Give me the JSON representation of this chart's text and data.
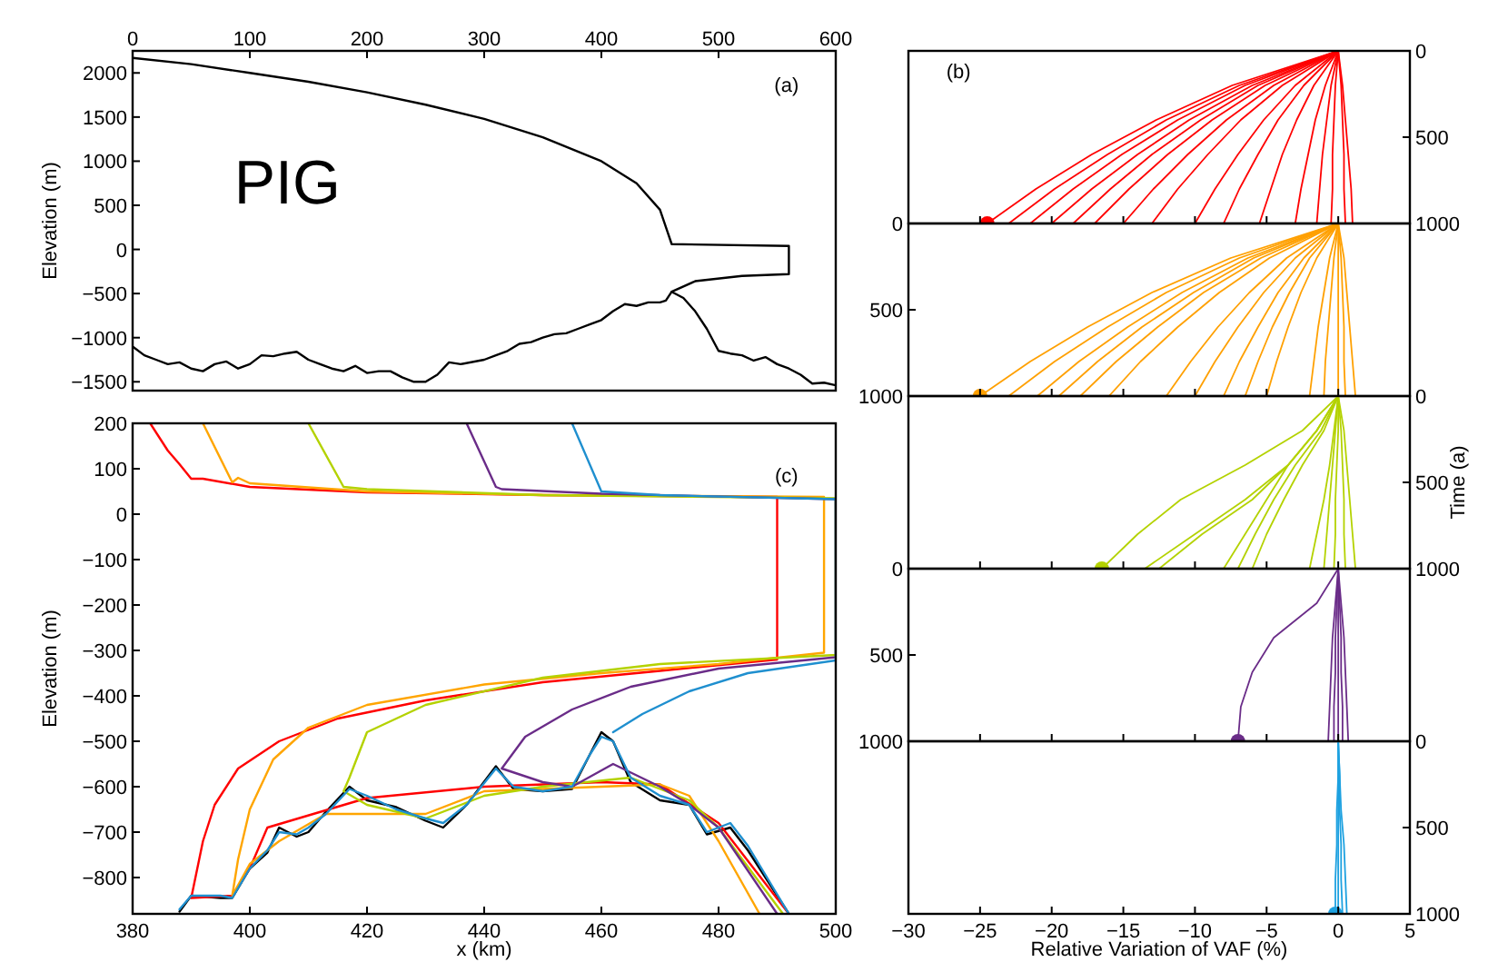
{
  "chart_data": [
    {
      "type": "line",
      "xlim": [
        0,
        600
      ],
      "xticks": [
        0,
        100,
        200,
        300,
        400,
        500,
        600
      ],
      "ylim": [
        -1600,
        2250
      ],
      "yticks": [
        -1500,
        -1000,
        -500,
        0,
        500,
        1000,
        1500,
        2000
      ],
      "ylabel": "Elevation (m)",
      "annotations": [
        "(a)",
        "PIG"
      ],
      "series": [
        {
          "color": "#000000",
          "x": [
            0,
            50,
            100,
            150,
            200,
            250,
            300,
            350,
            400,
            430,
            450,
            460,
            560,
            560,
            520,
            480,
            460
          ],
          "values": [
            2170,
            2100,
            2000,
            1900,
            1780,
            1640,
            1480,
            1270,
            1000,
            750,
            450,
            60,
            40,
            -280,
            -300,
            -360,
            -480
          ]
        },
        {
          "color": "#000000",
          "x": [
            0,
            10,
            20,
            30,
            40,
            50,
            60,
            70,
            80,
            90,
            100,
            110,
            120,
            130,
            140,
            150,
            160,
            170,
            180,
            190,
            200,
            210,
            220,
            230,
            240,
            250,
            260,
            270,
            280,
            300,
            310,
            320,
            330,
            340,
            350,
            360,
            370,
            380,
            390,
            400,
            410,
            420,
            430,
            440,
            450,
            455,
            460,
            470,
            480,
            490,
            500,
            510,
            520,
            530,
            540,
            550,
            560,
            570,
            580,
            590,
            600
          ],
          "values": [
            -1100,
            -1200,
            -1250,
            -1300,
            -1280,
            -1350,
            -1380,
            -1300,
            -1270,
            -1350,
            -1300,
            -1200,
            -1210,
            -1180,
            -1160,
            -1250,
            -1300,
            -1350,
            -1380,
            -1320,
            -1400,
            -1380,
            -1380,
            -1450,
            -1500,
            -1500,
            -1420,
            -1280,
            -1300,
            -1250,
            -1200,
            -1150,
            -1070,
            -1050,
            -1000,
            -960,
            -950,
            -900,
            -850,
            -800,
            -700,
            -620,
            -640,
            -600,
            -600,
            -580,
            -480,
            -550,
            -700,
            -900,
            -1150,
            -1180,
            -1200,
            -1260,
            -1220,
            -1300,
            -1350,
            -1420,
            -1520,
            -1510,
            -1540
          ]
        }
      ]
    },
    {
      "type": "line",
      "xlim": [
        380,
        500
      ],
      "xticks": [
        380,
        400,
        420,
        440,
        460,
        480,
        500
      ],
      "ylim": [
        -880,
        200
      ],
      "yticks": [
        -800,
        -700,
        -600,
        -500,
        -400,
        -300,
        -200,
        -100,
        0,
        100,
        200
      ],
      "xlabel": "x (km)",
      "ylabel": "Elevation (m)",
      "annotations": [
        "(c)"
      ],
      "series": [
        {
          "color": "#000000",
          "x": [
            388,
            390,
            395,
            397,
            400,
            403,
            405,
            408,
            410,
            413,
            417,
            420,
            425,
            430,
            433,
            437,
            442,
            445,
            450,
            455,
            458,
            460,
            462,
            465,
            470,
            475,
            478,
            482,
            485,
            492
          ],
          "values": [
            -875,
            -840,
            -845,
            -845,
            -780,
            -745,
            -690,
            -710,
            -700,
            -655,
            -600,
            -630,
            -645,
            -675,
            -690,
            -640,
            -555,
            -605,
            -610,
            -605,
            -530,
            -480,
            -500,
            -590,
            -630,
            -640,
            -705,
            -690,
            -740,
            -880
          ]
        },
        {
          "color": "#ff0000",
          "x": [
            383,
            386,
            388,
            390,
            392,
            400,
            420,
            450,
            490,
            490,
            470,
            450,
            430,
            415,
            405,
            398,
            394,
            392,
            390,
            397,
            400,
            403,
            420,
            440,
            460,
            470,
            480,
            492
          ],
          "values": [
            200,
            140,
            110,
            78,
            78,
            60,
            48,
            42,
            38,
            -320,
            -345,
            -370,
            -410,
            -450,
            -500,
            -560,
            -640,
            -720,
            -845,
            -840,
            -780,
            -690,
            -625,
            -600,
            -590,
            -595,
            -680,
            -880
          ]
        },
        {
          "color": "#ffa500",
          "x": [
            392,
            397,
            398,
            400,
            420,
            450,
            498,
            498,
            480,
            460,
            440,
            420,
            410,
            404,
            400,
            398,
            397,
            400,
            405,
            413,
            430,
            440,
            470,
            475,
            480,
            487
          ],
          "values": [
            200,
            70,
            80,
            68,
            50,
            42,
            38,
            -305,
            -330,
            -350,
            -375,
            -420,
            -470,
            -540,
            -650,
            -760,
            -840,
            -770,
            -720,
            -660,
            -660,
            -610,
            -595,
            -620,
            -720,
            -880
          ]
        },
        {
          "color": "#b4d200",
          "x": [
            410,
            416,
            420,
            450,
            500,
            500,
            470,
            450,
            430,
            420,
            417,
            416,
            420,
            430,
            440,
            450,
            465,
            475,
            480,
            491
          ],
          "values": [
            200,
            60,
            55,
            42,
            35,
            -310,
            -330,
            -360,
            -420,
            -480,
            -580,
            -610,
            -640,
            -670,
            -620,
            -600,
            -580,
            -630,
            -690,
            -880
          ]
        },
        {
          "color": "#6a2c88",
          "x": [
            437,
            442,
            443,
            460,
            500,
            500,
            480,
            465,
            455,
            447,
            443,
            450,
            455,
            462,
            470,
            475,
            480,
            490
          ],
          "values": [
            200,
            60,
            55,
            45,
            33,
            -315,
            -340,
            -380,
            -430,
            -490,
            -560,
            -590,
            -600,
            -550,
            -600,
            -640,
            -690,
            -880
          ]
        },
        {
          "color": "#1f8fcf",
          "x": [
            455,
            460,
            470,
            500,
            500,
            485,
            475,
            467,
            462
          ],
          "values": [
            200,
            50,
            42,
            33,
            -322,
            -350,
            -390,
            -440,
            -480
          ]
        },
        {
          "color": "#1f8fcf",
          "x": [
            388,
            390,
            395,
            397,
            400,
            403,
            405,
            408,
            410,
            413,
            417,
            420,
            425,
            430,
            433,
            437,
            442,
            445,
            450,
            455,
            458,
            460,
            462,
            465,
            470,
            475,
            478,
            482,
            485,
            492
          ],
          "values": [
            -870,
            -840,
            -840,
            -845,
            -780,
            -740,
            -700,
            -705,
            -690,
            -660,
            -605,
            -620,
            -650,
            -670,
            -680,
            -640,
            -560,
            -600,
            -610,
            -600,
            -530,
            -490,
            -500,
            -580,
            -620,
            -640,
            -700,
            -680,
            -730,
            -880
          ]
        }
      ]
    },
    {
      "type": "line",
      "xlim": [
        -30,
        5
      ],
      "xticks": [
        -30,
        -25,
        -20,
        -15,
        -10,
        -5,
        0,
        5
      ],
      "ylim": [
        1000,
        0
      ],
      "yticks": [
        0,
        500,
        1000
      ],
      "tick_labels": "y",
      "annotations": [
        "(b)"
      ],
      "series": [
        {
          "color": "#ff0000",
          "x": [
            0,
            -7.4,
            -12.7,
            -17.2,
            -21.1,
            -24.5
          ],
          "values": [
            0,
            200,
            400,
            600,
            800,
            1000
          ]
        },
        {
          "color": "#ff0000",
          "x": [
            0,
            -6.9,
            -12,
            -16.1,
            -19.8,
            -23
          ],
          "values": [
            0,
            200,
            400,
            600,
            800,
            1000
          ]
        },
        {
          "color": "#ff0000",
          "x": [
            0,
            -6.5,
            -11.2,
            -15.1,
            -18.5,
            -21.5
          ],
          "values": [
            0,
            200,
            400,
            600,
            800,
            1000
          ]
        },
        {
          "color": "#ff0000",
          "x": [
            0,
            -6,
            -10.4,
            -14,
            -17.2,
            -20
          ],
          "values": [
            0,
            200,
            400,
            600,
            800,
            1000
          ]
        },
        {
          "color": "#ff0000",
          "x": [
            0,
            -5.6,
            -9.6,
            -13,
            -15.9,
            -18.5
          ],
          "values": [
            0,
            200,
            400,
            600,
            800,
            1000
          ]
        },
        {
          "color": "#ff0000",
          "x": [
            0,
            -5.1,
            -8.8,
            -11.9,
            -14.6,
            -17
          ],
          "values": [
            0,
            200,
            400,
            600,
            800,
            1000
          ]
        },
        {
          "color": "#ff0000",
          "x": [
            0,
            -4.5,
            -7.8,
            -10.5,
            -12.9,
            -15
          ],
          "values": [
            0,
            200,
            400,
            600,
            800,
            1000
          ]
        },
        {
          "color": "#ff0000",
          "x": [
            0,
            -3.9,
            -6.8,
            -9.1,
            -11.2,
            -13
          ],
          "values": [
            0,
            200,
            400,
            600,
            800,
            1000
          ]
        },
        {
          "color": "#ff0000",
          "x": [
            0,
            -3,
            -5.2,
            -7,
            -8.6,
            -10
          ],
          "values": [
            0,
            200,
            400,
            600,
            800,
            1000
          ]
        },
        {
          "color": "#ff0000",
          "x": [
            0,
            -2.4,
            -4.2,
            -5.6,
            -6.9,
            -8
          ],
          "values": [
            0,
            200,
            400,
            600,
            800,
            1000
          ]
        },
        {
          "color": "#ff0000",
          "x": [
            0,
            -1.7,
            -2.9,
            -3.9,
            -4.7,
            -5.5
          ],
          "values": [
            0,
            200,
            400,
            600,
            800,
            1000
          ]
        },
        {
          "color": "#ff0000",
          "x": [
            0,
            -0.9,
            -1.6,
            -2.1,
            -2.6,
            -3
          ],
          "values": [
            0,
            200,
            400,
            600,
            800,
            1000
          ]
        },
        {
          "color": "#ff0000",
          "x": [
            0,
            -0.5,
            -0.8,
            -1.1,
            -1.3,
            -1.5
          ],
          "values": [
            0,
            200,
            400,
            600,
            800,
            1000
          ]
        },
        {
          "color": "#ff0000",
          "x": [
            0,
            -0.2,
            -0.3,
            -0.4,
            -0.4,
            -0.5
          ],
          "values": [
            0,
            200,
            400,
            600,
            800,
            1000
          ]
        },
        {
          "color": "#ff0000",
          "x": [
            0,
            0.2,
            0.3,
            0.4,
            0.4,
            0.5
          ],
          "values": [
            0,
            200,
            400,
            600,
            800,
            1000
          ]
        },
        {
          "color": "#ff0000",
          "x": [
            0,
            0.3,
            0.5,
            0.7,
            0.9,
            1
          ],
          "values": [
            0,
            200,
            400,
            600,
            800,
            1000
          ]
        },
        {
          "type": "scatter",
          "marker": "circle",
          "color": "#ff0000",
          "x": [
            -24.5
          ],
          "values": [
            1000
          ]
        }
      ]
    },
    {
      "type": "line",
      "xlim": [
        -30,
        5
      ],
      "xticks": [
        -30,
        -25,
        -20,
        -15,
        -10,
        -5,
        0,
        5
      ],
      "ylim": [
        1000,
        0
      ],
      "yticks": [
        0,
        500,
        1000
      ],
      "tick_labels": "y",
      "series": [
        {
          "color": "#ffa000",
          "x": [
            0,
            -7.5,
            -13,
            -17.5,
            -21.5,
            -25
          ],
          "values": [
            0,
            200,
            400,
            600,
            800,
            1000
          ]
        },
        {
          "color": "#ffa000",
          "x": [
            0,
            -6.9,
            -12,
            -16.1,
            -19.8,
            -23
          ],
          "values": [
            0,
            200,
            400,
            600,
            800,
            1000
          ]
        },
        {
          "color": "#ffa000",
          "x": [
            0,
            -6.3,
            -10.9,
            -14.7,
            -18.1,
            -21
          ],
          "values": [
            0,
            200,
            400,
            600,
            800,
            1000
          ]
        },
        {
          "color": "#ffa000",
          "x": [
            0,
            -5.9,
            -10.1,
            -13.7,
            -16.8,
            -19.5
          ],
          "values": [
            0,
            200,
            400,
            600,
            800,
            1000
          ]
        },
        {
          "color": "#ffa000",
          "x": [
            0,
            -5.4,
            -9.4,
            -12.6,
            -15.5,
            -18
          ],
          "values": [
            0,
            200,
            400,
            600,
            800,
            1000
          ]
        },
        {
          "color": "#ffa000",
          "x": [
            0,
            -4.8,
            -8.3,
            -11.2,
            -13.8,
            -16
          ],
          "values": [
            0,
            200,
            400,
            600,
            800,
            1000
          ]
        },
        {
          "color": "#ffa000",
          "x": [
            0,
            -3.6,
            -6.2,
            -8.4,
            -10.3,
            -12
          ],
          "values": [
            0,
            200,
            400,
            600,
            800,
            1000
          ]
        },
        {
          "color": "#ffa000",
          "x": [
            0,
            -3,
            -5.2,
            -7,
            -8.6,
            -10
          ],
          "values": [
            0,
            200,
            400,
            600,
            800,
            1000
          ]
        },
        {
          "color": "#ffa000",
          "x": [
            0,
            -2.4,
            -4.2,
            -5.6,
            -6.9,
            -8
          ],
          "values": [
            0,
            200,
            400,
            600,
            800,
            1000
          ]
        },
        {
          "color": "#ffa000",
          "x": [
            0,
            -2,
            -3.4,
            -4.6,
            -5.6,
            -6.5
          ],
          "values": [
            0,
            200,
            400,
            600,
            800,
            1000
          ]
        },
        {
          "color": "#ffa000",
          "x": [
            0,
            -1.5,
            -2.6,
            -3.5,
            -4.3,
            -5
          ],
          "values": [
            0,
            200,
            400,
            600,
            800,
            1000
          ]
        },
        {
          "color": "#ffa000",
          "x": [
            0,
            -0.6,
            -1,
            -1.4,
            -1.7,
            -2
          ],
          "values": [
            0,
            200,
            400,
            600,
            800,
            1000
          ]
        },
        {
          "color": "#ffa000",
          "x": [
            0,
            -0.3,
            -0.5,
            -0.7,
            -0.9,
            -1
          ],
          "values": [
            0,
            200,
            400,
            600,
            800,
            1000
          ]
        },
        {
          "color": "#ffa000",
          "x": [
            0,
            0,
            0,
            0,
            0,
            0
          ],
          "values": [
            0,
            200,
            400,
            600,
            800,
            1000
          ]
        },
        {
          "color": "#ffa000",
          "x": [
            0,
            0.2,
            0.3,
            0.4,
            0.4,
            0.5
          ],
          "values": [
            0,
            200,
            400,
            600,
            800,
            1000
          ]
        },
        {
          "color": "#ffa000",
          "x": [
            0,
            0.4,
            0.6,
            0.8,
            1,
            1.2
          ],
          "values": [
            0,
            200,
            400,
            600,
            800,
            1000
          ]
        },
        {
          "type": "scatter",
          "marker": "circle",
          "color": "#ffa000",
          "x": [
            -25
          ],
          "values": [
            1000
          ]
        }
      ]
    },
    {
      "type": "line",
      "xlim": [
        -30,
        5
      ],
      "xticks": [
        -30,
        -25,
        -20,
        -15,
        -10,
        -5,
        0,
        5
      ],
      "ylim": [
        1000,
        0
      ],
      "yticks": [
        0,
        500,
        1000
      ],
      "tick_labels": "y",
      "y2label": "Time (a)",
      "series": [
        {
          "color": "#b4d200",
          "x": [
            0,
            -2.5,
            -6.5,
            -11,
            -14,
            -16.5
          ],
          "values": [
            0,
            200,
            400,
            600,
            800,
            1000
          ]
        },
        {
          "color": "#b4d200",
          "x": [
            0,
            -1.5,
            -3.5,
            -6.5,
            -10,
            -13.5
          ],
          "values": [
            0,
            200,
            400,
            600,
            800,
            1000
          ]
        },
        {
          "color": "#b4d200",
          "x": [
            0,
            -1.5,
            -3.5,
            -6,
            -9.5,
            -12.5
          ],
          "values": [
            0,
            200,
            400,
            600,
            800,
            1000
          ]
        },
        {
          "color": "#b4d200",
          "x": [
            0,
            -1.5,
            -3.5,
            -5,
            -6.5,
            -8
          ],
          "values": [
            0,
            200,
            400,
            600,
            800,
            1000
          ]
        },
        {
          "color": "#b4d200",
          "x": [
            0,
            -1.2,
            -3,
            -4.5,
            -5.8,
            -7
          ],
          "values": [
            0,
            200,
            400,
            600,
            800,
            1000
          ]
        },
        {
          "color": "#b4d200",
          "x": [
            0,
            -1,
            -2.5,
            -3.8,
            -5,
            -6
          ],
          "values": [
            0,
            200,
            400,
            600,
            800,
            1000
          ]
        },
        {
          "color": "#b4d200",
          "x": [
            0,
            -0.3,
            -0.6,
            -1,
            -1.5,
            -2
          ],
          "values": [
            0,
            200,
            400,
            600,
            800,
            1000
          ]
        },
        {
          "color": "#b4d200",
          "x": [
            0,
            -0.2,
            -0.4,
            -0.6,
            -0.8,
            -1
          ],
          "values": [
            0,
            200,
            400,
            600,
            800,
            1000
          ]
        },
        {
          "color": "#b4d200",
          "x": [
            0,
            0,
            -0.1,
            -0.2,
            -0.2,
            -0.3
          ],
          "values": [
            0,
            200,
            400,
            600,
            800,
            1000
          ]
        },
        {
          "color": "#b4d200",
          "x": [
            0,
            0.2,
            0.3,
            0.4,
            0.4,
            0.5
          ],
          "values": [
            0,
            200,
            400,
            600,
            800,
            1000
          ]
        },
        {
          "color": "#b4d200",
          "x": [
            0,
            0.4,
            0.6,
            0.8,
            1,
            1.2
          ],
          "values": [
            0,
            200,
            400,
            600,
            800,
            1000
          ]
        },
        {
          "type": "scatter",
          "marker": "circle",
          "color": "#b4d200",
          "x": [
            -16.5
          ],
          "values": [
            1000
          ]
        }
      ]
    },
    {
      "type": "line",
      "xlim": [
        -30,
        5
      ],
      "xticks": [
        -30,
        -25,
        -20,
        -15,
        -10,
        -5,
        0,
        5
      ],
      "ylim": [
        1000,
        0
      ],
      "yticks": [
        0,
        500,
        1000
      ],
      "tick_labels": "y",
      "series": [
        {
          "color": "#6a2c88",
          "x": [
            0,
            -1.5,
            -4.5,
            -6,
            -6.8,
            -7
          ],
          "values": [
            0,
            200,
            400,
            600,
            800,
            1000
          ]
        },
        {
          "color": "#6a2c88",
          "x": [
            0,
            -0.2,
            -0.4,
            -0.5,
            -0.6,
            -0.7
          ],
          "values": [
            0,
            200,
            400,
            600,
            800,
            1000
          ]
        },
        {
          "color": "#6a2c88",
          "x": [
            0,
            -0.1,
            -0.2,
            -0.2,
            -0.3,
            -0.3
          ],
          "values": [
            0,
            200,
            400,
            600,
            800,
            1000
          ]
        },
        {
          "color": "#6a2c88",
          "x": [
            0,
            0,
            0,
            0,
            0,
            0
          ],
          "values": [
            0,
            200,
            400,
            600,
            800,
            1000
          ]
        },
        {
          "color": "#6a2c88",
          "x": [
            0,
            0.1,
            0.2,
            0.2,
            0.3,
            0.3
          ],
          "values": [
            0,
            200,
            400,
            600,
            800,
            1000
          ]
        },
        {
          "color": "#6a2c88",
          "x": [
            0,
            0.2,
            0.4,
            0.5,
            0.6,
            0.7
          ],
          "values": [
            0,
            200,
            400,
            600,
            800,
            1000
          ]
        },
        {
          "type": "scatter",
          "marker": "circle",
          "color": "#6a2c88",
          "x": [
            -7
          ],
          "values": [
            1000
          ]
        }
      ]
    },
    {
      "type": "line",
      "xlim": [
        -30,
        5
      ],
      "xticks": [
        -30,
        -25,
        -20,
        -15,
        -10,
        -5,
        0,
        5
      ],
      "ylim": [
        1000,
        0
      ],
      "yticks": [
        0,
        500,
        1000
      ],
      "xlabel": "Relative Variation of VAF (%)",
      "series": [
        {
          "color": "#1da1e0",
          "x": [
            0,
            0,
            -0.1,
            -0.1,
            -0.2,
            -0.2
          ],
          "values": [
            0,
            200,
            400,
            600,
            800,
            1000
          ]
        },
        {
          "color": "#1da1e0",
          "x": [
            0,
            0,
            0,
            0,
            0,
            0
          ],
          "values": [
            0,
            200,
            400,
            600,
            800,
            1000
          ]
        },
        {
          "color": "#1da1e0",
          "x": [
            0,
            0.1,
            0.1,
            0.2,
            0.2,
            0.3
          ],
          "values": [
            0,
            200,
            400,
            600,
            800,
            1000
          ]
        },
        {
          "color": "#1da1e0",
          "x": [
            0,
            0.1,
            0.2,
            0.4,
            0.5,
            0.6
          ],
          "values": [
            0,
            200,
            400,
            600,
            800,
            1000
          ]
        },
        {
          "type": "scatter",
          "marker": "circle",
          "color": "#1da1e0",
          "x": [
            -0.2
          ],
          "values": [
            1000
          ]
        }
      ]
    }
  ]
}
